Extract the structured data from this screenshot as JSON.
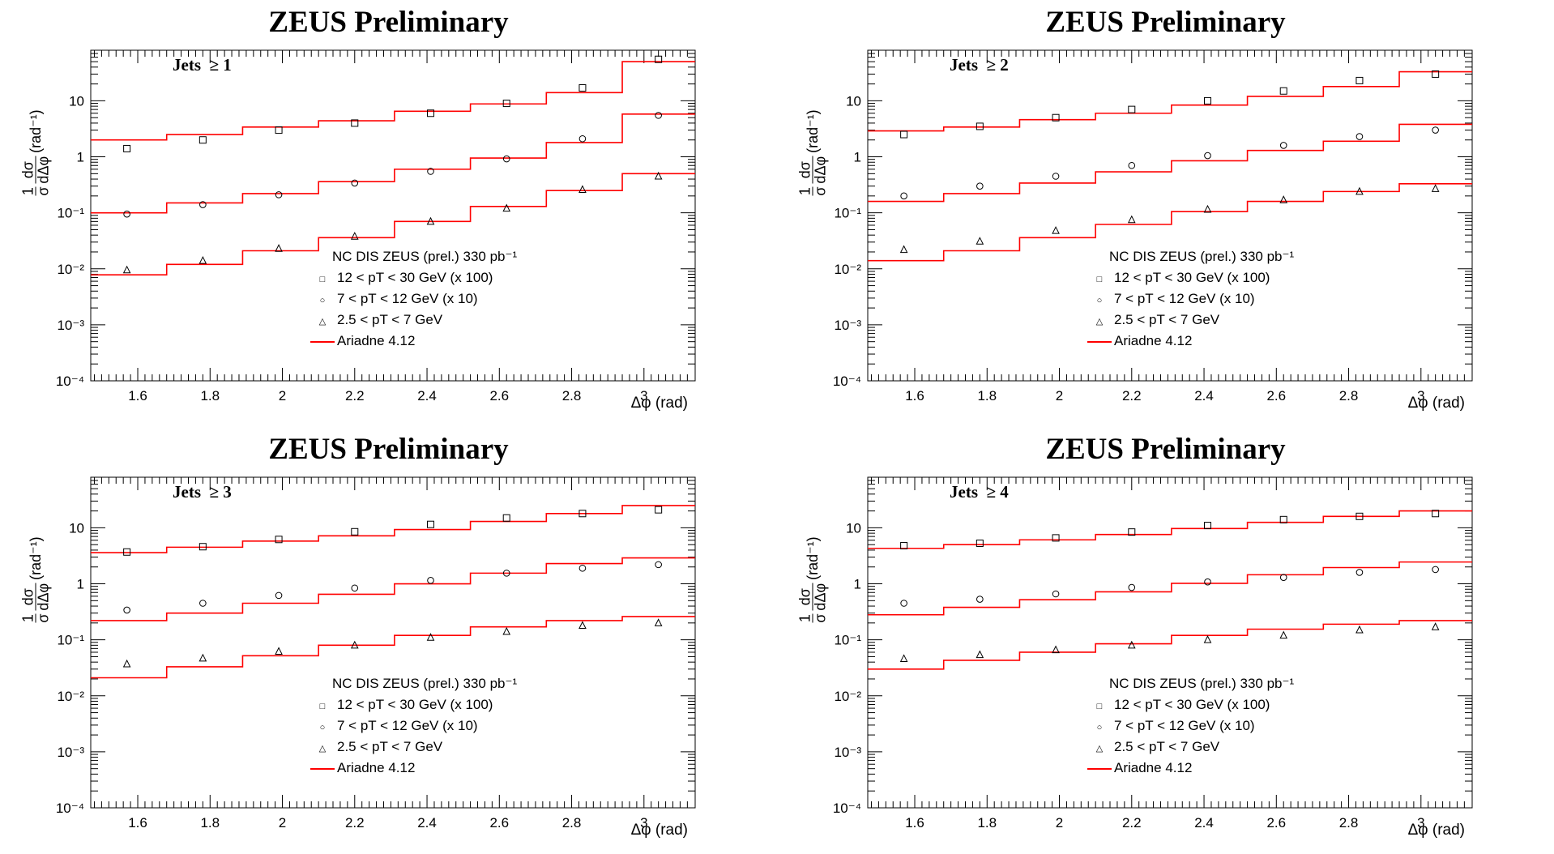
{
  "layout_note": "",
  "panels": [
    {
      "title": "ZEUS Preliminary",
      "jets_label": "Jets  ≥ 1"
    },
    {
      "title": "ZEUS Preliminary",
      "jets_label": "Jets  ≥ 2"
    },
    {
      "title": "ZEUS Preliminary",
      "jets_label": "Jets  ≥ 3"
    },
    {
      "title": "ZEUS Preliminary",
      "jets_label": "Jets  ≥ 4"
    }
  ],
  "axes": {
    "ylabel_num": "1",
    "ylabel_den": "σ",
    "ylabel_frac_num": "dσ",
    "ylabel_frac_den": "dΔφ",
    "ylabel_unit": "(rad⁻¹)",
    "xlabel": "Δφ (rad)",
    "xticks": [
      "1.6",
      "1.8",
      "2",
      "2.2",
      "2.4",
      "2.6",
      "2.8",
      "3"
    ],
    "yticks": [
      "10",
      "1",
      "10⁻¹",
      "10⁻²",
      "10⁻³",
      "10⁻⁴"
    ]
  },
  "legend": {
    "header": "NC DIS ZEUS (prel.) 330 pb⁻¹",
    "entries": [
      {
        "marker": "□",
        "label": "12 < pT < 30 GeV (x 100)"
      },
      {
        "marker": "○",
        "label": "7 < pT < 12 GeV (x 10)"
      },
      {
        "marker": "△",
        "label": "2.5 < pT <  7 GeV"
      },
      {
        "marker": "line",
        "label": "Ariadne 4.12"
      }
    ]
  },
  "colors": {
    "model_line": "#ff0000",
    "data_marker": "#000000",
    "axis": "#000000"
  },
  "chart_data": [
    {
      "type": "scatter",
      "title": "ZEUS Preliminary",
      "annotation": "Jets  ≥ 1",
      "xlabel": "Δφ (rad)",
      "ylabel": "1/σ dσ/dΔφ (rad⁻¹)",
      "xlim": [
        1.47,
        3.1416
      ],
      "ylim": [
        0.0001,
        80
      ],
      "yscale": "log",
      "bin_edges": [
        1.47,
        1.68,
        1.89,
        2.1,
        2.31,
        2.52,
        2.73,
        2.94,
        3.1416
      ],
      "x": [
        1.57,
        1.78,
        1.99,
        2.2,
        2.41,
        2.62,
        2.83,
        3.04
      ],
      "series": [
        {
          "name": "12 < pT < 30 GeV (x 100)",
          "marker": "square",
          "values": [
            1.4,
            2.0,
            3.0,
            4.0,
            6.0,
            9.0,
            17,
            55
          ]
        },
        {
          "name": "7 < pT < 12 GeV (x 10)",
          "marker": "circle",
          "values": [
            0.095,
            0.14,
            0.21,
            0.34,
            0.55,
            0.92,
            2.1,
            5.5
          ]
        },
        {
          "name": "2.5 < pT <  7 GeV",
          "marker": "triangle",
          "values": [
            0.0095,
            0.014,
            0.023,
            0.038,
            0.07,
            0.12,
            0.26,
            0.45
          ]
        }
      ],
      "model": [
        {
          "name": "Ariadne 4.12",
          "for": "12 < pT < 30 GeV (x 100)",
          "values": [
            2.0,
            2.5,
            3.4,
            4.4,
            6.5,
            8.8,
            14,
            50
          ]
        },
        {
          "name": "Ariadne 4.12",
          "for": "7 < pT < 12 GeV (x 10)",
          "values": [
            0.1,
            0.15,
            0.22,
            0.36,
            0.6,
            0.95,
            1.8,
            5.8
          ]
        },
        {
          "name": "Ariadne 4.12",
          "for": "2.5 < pT <  7 GeV",
          "values": [
            0.0078,
            0.012,
            0.021,
            0.036,
            0.07,
            0.13,
            0.25,
            0.5
          ]
        }
      ]
    },
    {
      "type": "scatter",
      "title": "ZEUS Preliminary",
      "annotation": "Jets  ≥ 2",
      "xlabel": "Δφ (rad)",
      "ylabel": "1/σ dσ/dΔφ (rad⁻¹)",
      "xlim": [
        1.47,
        3.1416
      ],
      "ylim": [
        0.0001,
        80
      ],
      "yscale": "log",
      "bin_edges": [
        1.47,
        1.68,
        1.89,
        2.1,
        2.31,
        2.52,
        2.73,
        2.94,
        3.1416
      ],
      "x": [
        1.57,
        1.78,
        1.99,
        2.2,
        2.41,
        2.62,
        2.83,
        3.04
      ],
      "series": [
        {
          "name": "12 < pT < 30 GeV (x 100)",
          "marker": "square",
          "values": [
            2.5,
            3.5,
            5.0,
            7.0,
            10,
            15,
            23,
            30
          ]
        },
        {
          "name": "7 < pT < 12 GeV (x 10)",
          "marker": "circle",
          "values": [
            0.2,
            0.3,
            0.45,
            0.7,
            1.05,
            1.6,
            2.3,
            3.0
          ]
        },
        {
          "name": "2.5 < pT <  7 GeV",
          "marker": "triangle",
          "values": [
            0.022,
            0.031,
            0.048,
            0.075,
            0.115,
            0.17,
            0.24,
            0.27
          ]
        }
      ],
      "model": [
        {
          "name": "Ariadne 4.12",
          "for": "12 < pT < 30 GeV (x 100)",
          "values": [
            2.9,
            3.4,
            4.6,
            6.0,
            8.4,
            12,
            18,
            33
          ]
        },
        {
          "name": "Ariadne 4.12",
          "for": "7 < pT < 12 GeV (x 10)",
          "values": [
            0.16,
            0.22,
            0.34,
            0.54,
            0.85,
            1.3,
            1.9,
            3.8
          ]
        },
        {
          "name": "Ariadne 4.12",
          "for": "2.5 < pT <  7 GeV",
          "values": [
            0.014,
            0.021,
            0.036,
            0.062,
            0.105,
            0.16,
            0.24,
            0.33
          ]
        }
      ]
    },
    {
      "type": "scatter",
      "title": "ZEUS Preliminary",
      "annotation": "Jets  ≥ 3",
      "xlabel": "Δφ (rad)",
      "ylabel": "1/σ dσ/dΔφ (rad⁻¹)",
      "xlim": [
        1.47,
        3.1416
      ],
      "ylim": [
        0.0001,
        80
      ],
      "yscale": "log",
      "bin_edges": [
        1.47,
        1.68,
        1.89,
        2.1,
        2.31,
        2.52,
        2.73,
        2.94,
        3.1416
      ],
      "x": [
        1.57,
        1.78,
        1.99,
        2.2,
        2.41,
        2.62,
        2.83,
        3.04
      ],
      "series": [
        {
          "name": "12 < pT < 30 GeV (x 100)",
          "marker": "square",
          "values": [
            3.7,
            4.6,
            6.2,
            8.5,
            11.5,
            15,
            18,
            21
          ]
        },
        {
          "name": "7 < pT < 12 GeV (x 10)",
          "marker": "circle",
          "values": [
            0.34,
            0.45,
            0.62,
            0.84,
            1.15,
            1.55,
            1.9,
            2.2
          ]
        },
        {
          "name": "2.5 < pT <  7 GeV",
          "marker": "triangle",
          "values": [
            0.037,
            0.047,
            0.062,
            0.08,
            0.11,
            0.14,
            0.18,
            0.2
          ]
        }
      ],
      "model": [
        {
          "name": "Ariadne 4.12",
          "for": "12 < pT < 30 GeV (x 100)",
          "values": [
            3.6,
            4.5,
            5.8,
            7.2,
            9.3,
            13,
            18,
            25
          ]
        },
        {
          "name": "Ariadne 4.12",
          "for": "7 < pT < 12 GeV (x 10)",
          "values": [
            0.22,
            0.3,
            0.45,
            0.65,
            1.0,
            1.55,
            2.3,
            2.9
          ]
        },
        {
          "name": "Ariadne 4.12",
          "for": "2.5 < pT <  7 GeV",
          "values": [
            0.021,
            0.033,
            0.052,
            0.08,
            0.12,
            0.17,
            0.22,
            0.26
          ]
        }
      ]
    },
    {
      "type": "scatter",
      "title": "ZEUS Preliminary",
      "annotation": "Jets  ≥ 4",
      "xlabel": "Δφ (rad)",
      "ylabel": "1/σ dσ/dΔφ (rad⁻¹)",
      "xlim": [
        1.47,
        3.1416
      ],
      "ylim": [
        0.0001,
        80
      ],
      "yscale": "log",
      "bin_edges": [
        1.47,
        1.68,
        1.89,
        2.1,
        2.31,
        2.52,
        2.73,
        2.94,
        3.1416
      ],
      "x": [
        1.57,
        1.78,
        1.99,
        2.2,
        2.41,
        2.62,
        2.83,
        3.04
      ],
      "series": [
        {
          "name": "12 < pT < 30 GeV (x 100)",
          "marker": "square",
          "values": [
            4.8,
            5.3,
            6.6,
            8.4,
            11,
            14,
            16,
            18
          ]
        },
        {
          "name": "7 < pT < 12 GeV (x 10)",
          "marker": "circle",
          "values": [
            0.45,
            0.53,
            0.66,
            0.86,
            1.08,
            1.3,
            1.6,
            1.8
          ]
        },
        {
          "name": "2.5 < pT <  7 GeV",
          "marker": "triangle",
          "values": [
            0.046,
            0.054,
            0.066,
            0.08,
            0.1,
            0.12,
            0.15,
            0.17
          ]
        }
      ],
      "model": [
        {
          "name": "Ariadne 4.12",
          "for": "12 < pT < 30 GeV (x 100)",
          "values": [
            4.3,
            5.0,
            6.1,
            7.6,
            9.7,
            12.5,
            16,
            20
          ]
        },
        {
          "name": "Ariadne 4.12",
          "for": "7 < pT < 12 GeV (x 10)",
          "values": [
            0.28,
            0.38,
            0.52,
            0.72,
            1.02,
            1.45,
            1.95,
            2.45
          ]
        },
        {
          "name": "Ariadne 4.12",
          "for": "2.5 < pT <  7 GeV",
          "values": [
            0.03,
            0.043,
            0.06,
            0.085,
            0.12,
            0.155,
            0.19,
            0.22
          ]
        }
      ]
    }
  ]
}
